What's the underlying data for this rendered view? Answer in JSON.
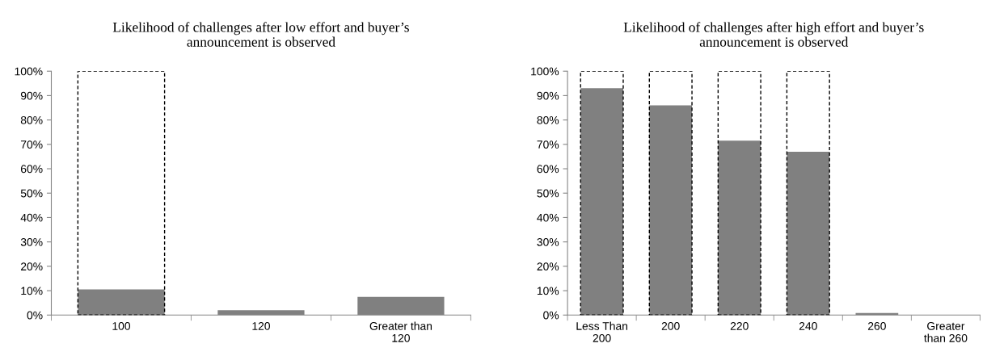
{
  "chart_data": [
    {
      "type": "bar",
      "title": "Likelihood of challenges after low effort and buyer’s\nannouncement is observed",
      "categories": [
        "100",
        "120",
        "Greater than\n120"
      ],
      "series": [
        {
          "color": "#000000",
          "line_style": "dashed",
          "values": [
            100,
            null,
            null
          ]
        },
        {
          "color": "#808080",
          "values": [
            10.5,
            2,
            7.5
          ]
        }
      ],
      "ylim": [
        0,
        100
      ],
      "yticks": [
        {
          "value": 0,
          "label": "0%"
        },
        {
          "value": 10,
          "label": "10%"
        },
        {
          "value": 20,
          "label": "20%"
        },
        {
          "value": 30,
          "label": "30%"
        },
        {
          "value": 40,
          "label": "40%"
        },
        {
          "value": 50,
          "label": "50%"
        },
        {
          "value": 60,
          "label": "60%"
        },
        {
          "value": 70,
          "label": "70%"
        },
        {
          "value": 80,
          "label": "80%"
        },
        {
          "value": 90,
          "label": "90%"
        },
        {
          "value": 100,
          "label": "100%"
        }
      ],
      "grid": false,
      "legend": false
    },
    {
      "type": "bar",
      "title": "Likelihood of challenges after high effort and buyer’s\nannouncement is observed",
      "categories": [
        "Less Than\n200",
        "200",
        "220",
        "240",
        "260",
        "Greater\nthan 260"
      ],
      "series": [
        {
          "color": "#000000",
          "line_style": "dashed",
          "values": [
            100,
            100,
            100,
            100,
            null,
            null
          ]
        },
        {
          "color": "#808080",
          "values": [
            93,
            86,
            71.5,
            67,
            0.8,
            0
          ]
        }
      ],
      "ylim": [
        0,
        100
      ],
      "yticks": [
        {
          "value": 0,
          "label": "0%"
        },
        {
          "value": 10,
          "label": "10%"
        },
        {
          "value": 20,
          "label": "20%"
        },
        {
          "value": 30,
          "label": "30%"
        },
        {
          "value": 40,
          "label": "40%"
        },
        {
          "value": 50,
          "label": "50%"
        },
        {
          "value": 60,
          "label": "60%"
        },
        {
          "value": 70,
          "label": "70%"
        },
        {
          "value": 80,
          "label": "80%"
        },
        {
          "value": 90,
          "label": "90%"
        },
        {
          "value": 100,
          "label": "100%"
        }
      ],
      "grid": false,
      "legend": false
    }
  ]
}
